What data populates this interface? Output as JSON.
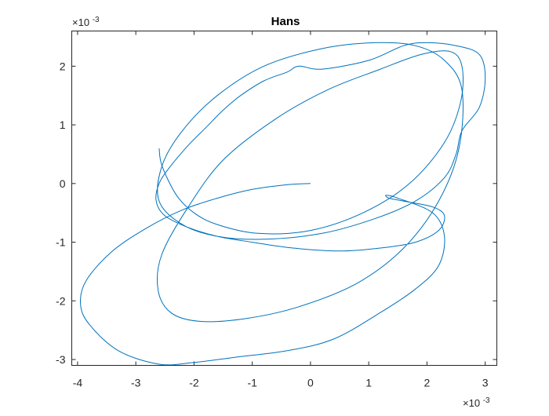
{
  "chart_data": {
    "type": "line",
    "title": "Hans",
    "xlabel": "",
    "ylabel": "",
    "x_multiplier": "×10",
    "x_exponent": "-3",
    "y_multiplier": "×10",
    "y_exponent": "-3",
    "xlim": [
      -4.1,
      3.2
    ],
    "ylim": [
      -3.1,
      2.6
    ],
    "x_ticks": [
      -4,
      -3,
      -2,
      -1,
      0,
      1,
      2,
      3
    ],
    "y_ticks": [
      -3,
      -2,
      -1,
      0,
      1,
      2
    ],
    "x_tick_labels": [
      "-4",
      "-3",
      "-2",
      "-1",
      "0",
      "1",
      "2",
      "3"
    ],
    "y_tick_labels": [
      "-3",
      "-2",
      "-1",
      "0",
      "1",
      "2"
    ],
    "grid": false,
    "legend": "none",
    "series": [
      {
        "color": "#0072BD",
        "x": [
          0.0,
          -0.4,
          -1.0,
          -1.6,
          -2.2,
          -2.8,
          -3.4,
          -3.85,
          -3.95,
          -3.8,
          -3.3,
          -2.6,
          -2.0,
          -1.2,
          -0.4,
          0.4,
          1.2,
          1.8,
          2.2,
          2.3,
          2.1,
          1.5,
          1.3,
          1.35,
          1.6,
          2.1,
          2.3,
          2.2,
          1.8,
          1.2,
          0.5,
          -0.3,
          -1.0,
          -1.6,
          -2.1,
          -2.5,
          -2.65,
          -2.6,
          -2.4,
          -2.1,
          -1.8,
          -1.5,
          -1.2,
          -0.8,
          -0.4,
          -0.2,
          0.2,
          1.0,
          1.6,
          2.0,
          2.5,
          2.9,
          3.0,
          2.9,
          2.6,
          2.5,
          2.3,
          1.8,
          1.1,
          0.2,
          -0.8,
          -1.6,
          -2.2,
          -2.6,
          -2.55,
          -2.2,
          -1.6,
          -0.8,
          0.2,
          1.1,
          1.8,
          2.3,
          2.6,
          2.55,
          2.2,
          1.6,
          0.8,
          -0.2,
          -1.1,
          -1.9,
          -2.4,
          -2.62,
          -2.55,
          -2.1,
          -1.5,
          -0.6,
          0.3,
          1.2,
          1.9,
          2.4,
          2.6,
          2.58,
          2.3,
          1.7,
          0.9,
          0.0,
          -0.9,
          -1.6,
          -2.0,
          -2.3,
          -2.55,
          -2.6
        ],
        "y": [
          0.0,
          -0.02,
          -0.1,
          -0.25,
          -0.45,
          -0.75,
          -1.15,
          -1.65,
          -2.05,
          -2.4,
          -2.85,
          -3.08,
          -3.05,
          -2.95,
          -2.85,
          -2.65,
          -2.2,
          -1.8,
          -1.4,
          -0.9,
          -0.5,
          -0.25,
          -0.2,
          -0.25,
          -0.3,
          -0.4,
          -0.55,
          -0.8,
          -1.0,
          -1.1,
          -1.15,
          -1.1,
          -1.0,
          -0.9,
          -0.75,
          -0.55,
          -0.3,
          0.0,
          0.3,
          0.65,
          0.95,
          1.25,
          1.5,
          1.75,
          1.9,
          2.0,
          1.95,
          2.1,
          2.35,
          2.4,
          2.35,
          2.2,
          1.8,
          1.3,
          0.9,
          0.5,
          0.1,
          -0.3,
          -0.6,
          -0.85,
          -0.95,
          -0.9,
          -0.7,
          -0.3,
          0.3,
          0.9,
          1.5,
          2.0,
          2.3,
          2.4,
          2.35,
          2.1,
          1.6,
          0.6,
          -0.3,
          -1.1,
          -1.7,
          -2.1,
          -2.3,
          -2.35,
          -2.2,
          -1.8,
          -1.2,
          -0.4,
          0.4,
          1.1,
          1.6,
          1.95,
          2.2,
          2.25,
          2.0,
          1.4,
          0.7,
          0.0,
          -0.5,
          -0.8,
          -0.85,
          -0.7,
          -0.5,
          -0.2,
          0.3,
          0.6
        ]
      }
    ]
  }
}
